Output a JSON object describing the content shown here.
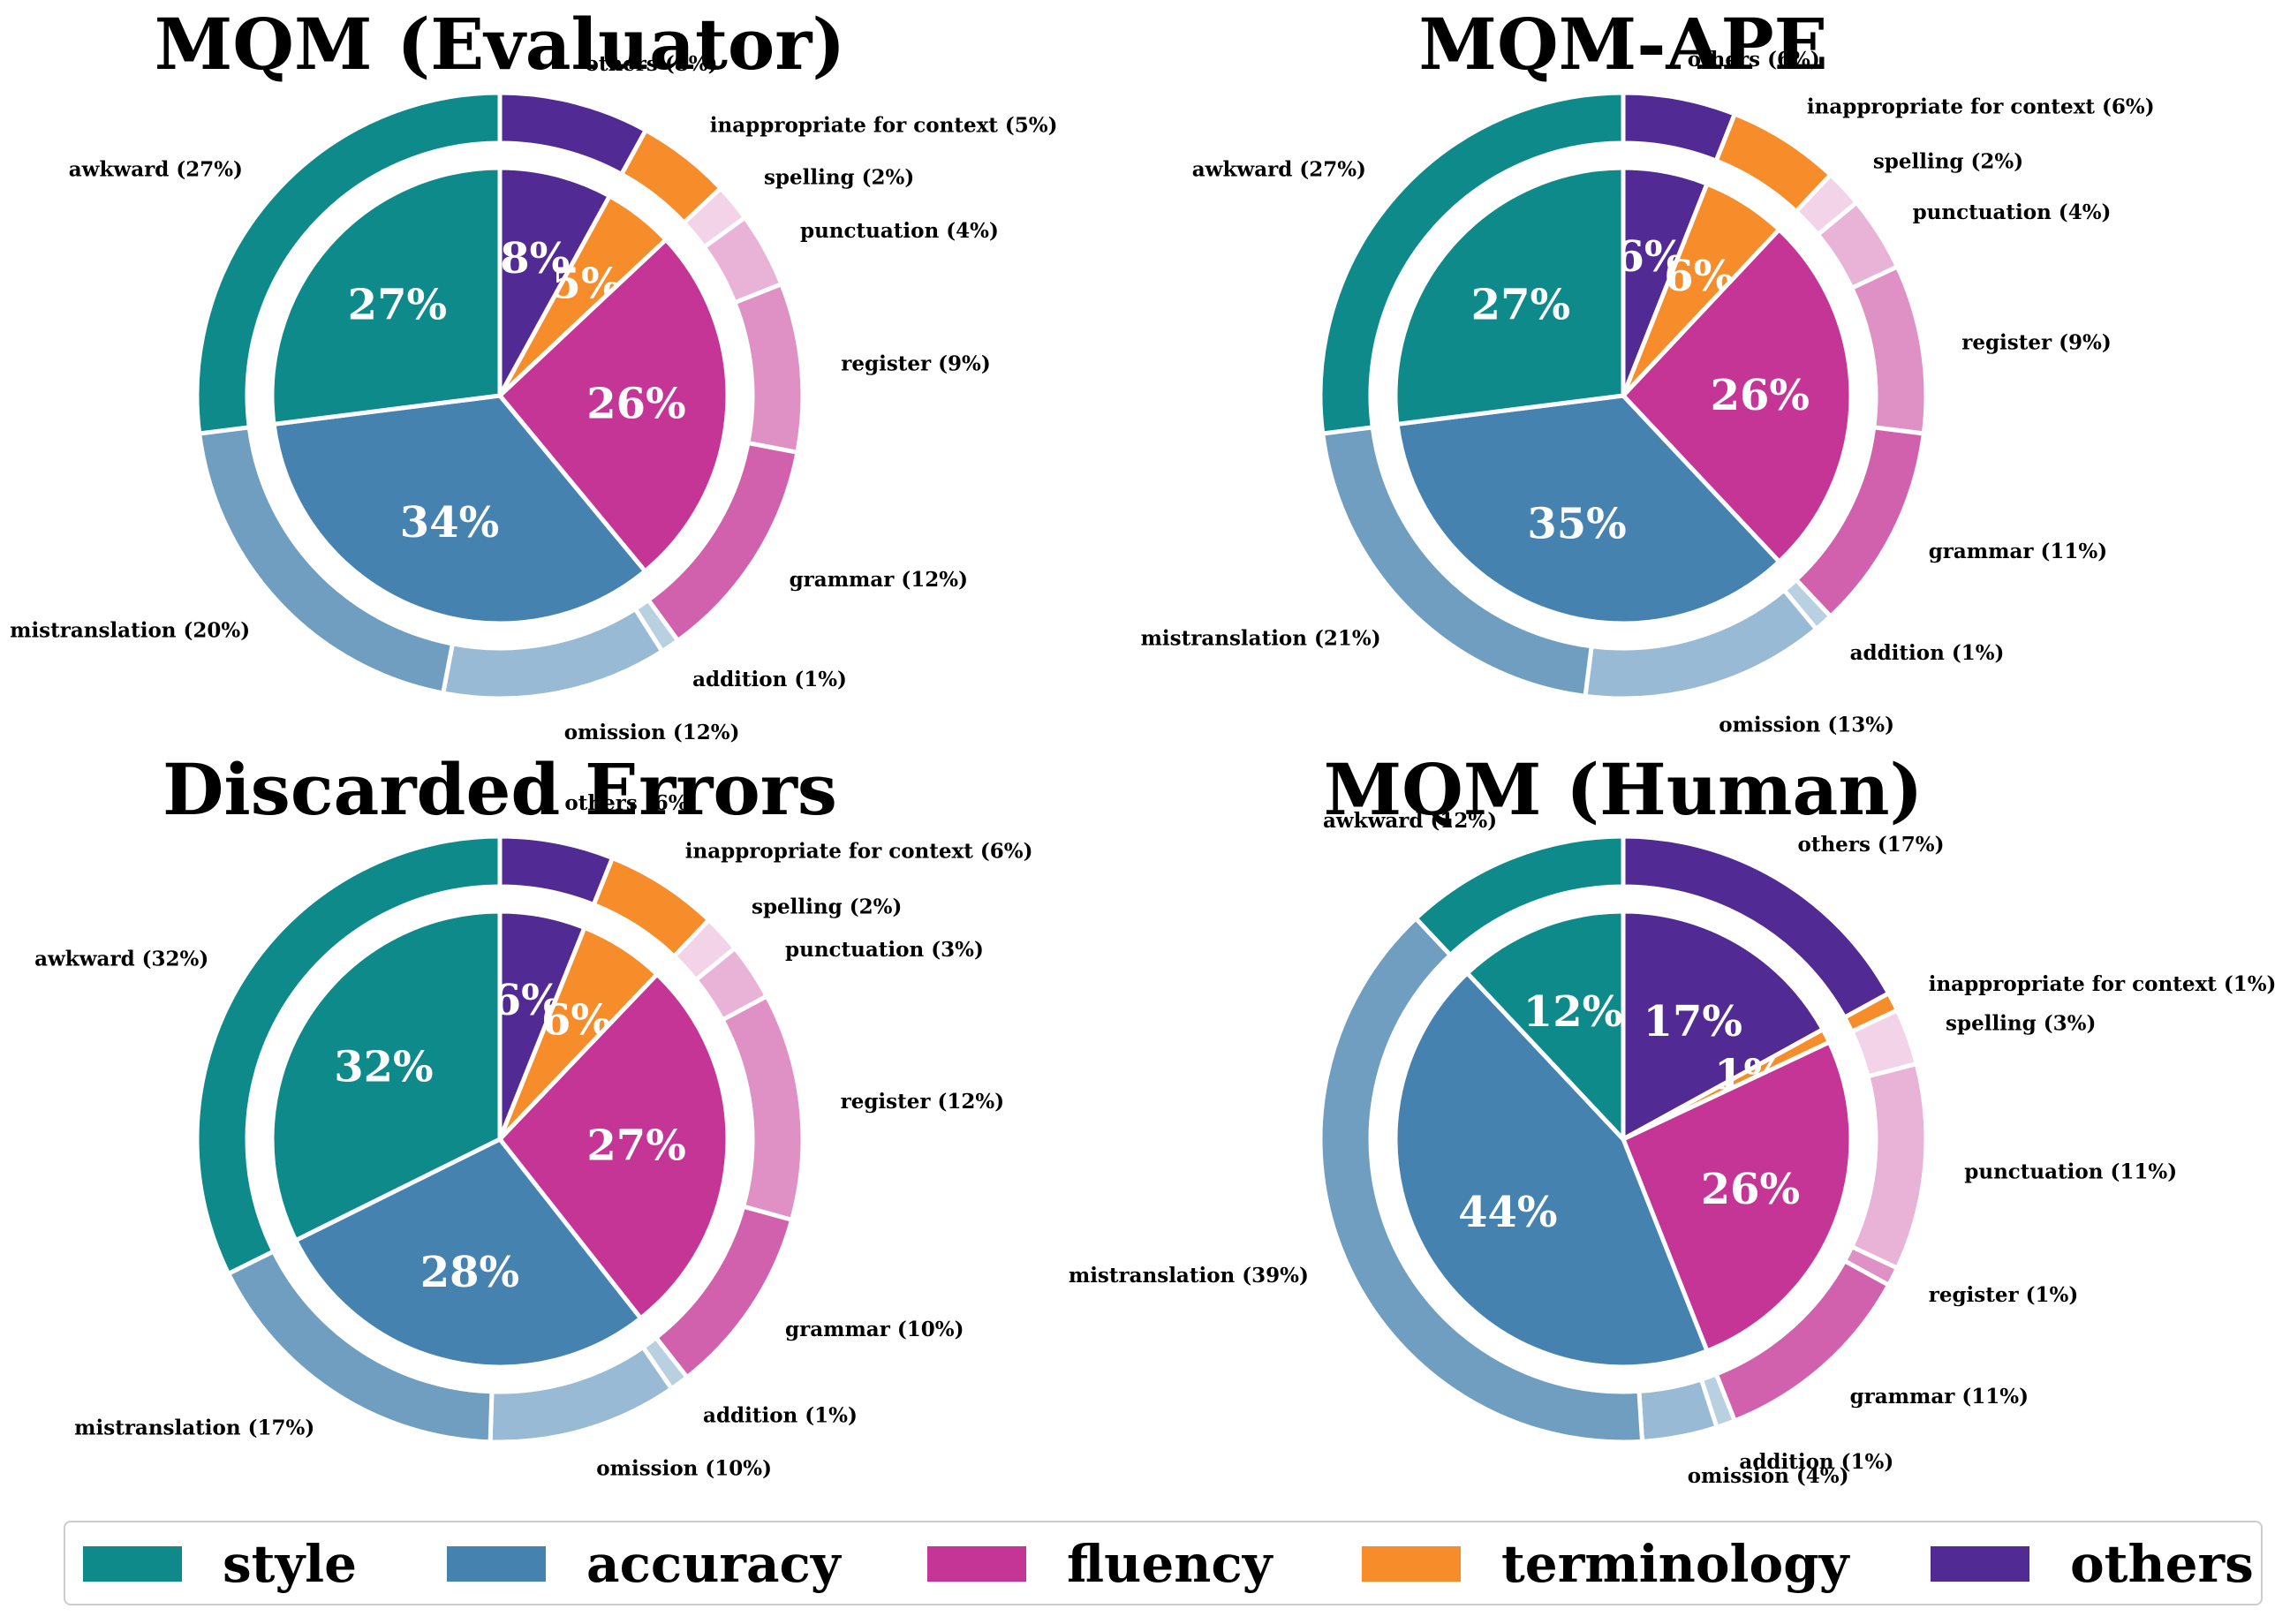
{
  "colors": {
    "style": "#0f8a8a",
    "accuracy": "#4682b0",
    "fluency": "#c53596",
    "terminology": "#f68d2a",
    "others": "#512b93"
  },
  "legend": [
    {
      "key": "style",
      "label": "style"
    },
    {
      "key": "accuracy",
      "label": "accuracy"
    },
    {
      "key": "fluency",
      "label": "fluency"
    },
    {
      "key": "terminology",
      "label": "terminology"
    },
    {
      "key": "others",
      "label": "others"
    }
  ],
  "chart_data": [
    {
      "type": "pie",
      "title": "MQM (Evaluator)",
      "inner": [
        {
          "category": "style",
          "value": 27,
          "label": "27%"
        },
        {
          "category": "accuracy",
          "value": 34,
          "label": "34%"
        },
        {
          "category": "fluency",
          "value": 26,
          "label": "26%"
        },
        {
          "category": "terminology",
          "value": 5,
          "label": "5%"
        },
        {
          "category": "others",
          "value": 8,
          "label": "8%"
        }
      ],
      "outer": [
        {
          "category": "style",
          "name": "awkward",
          "value": 27,
          "label": "awkward (27%)"
        },
        {
          "category": "accuracy",
          "name": "mistranslation",
          "value": 20,
          "label": "mistranslation (20%)"
        },
        {
          "category": "accuracy",
          "name": "omission",
          "value": 12,
          "label": "omission (12%)"
        },
        {
          "category": "accuracy",
          "name": "addition",
          "value": 1,
          "label": "addition (1%)"
        },
        {
          "category": "fluency",
          "name": "grammar",
          "value": 12,
          "label": "grammar (12%)"
        },
        {
          "category": "fluency",
          "name": "register",
          "value": 9,
          "label": "register (9%)"
        },
        {
          "category": "fluency",
          "name": "punctuation",
          "value": 4,
          "label": "punctuation (4%)"
        },
        {
          "category": "fluency",
          "name": "spelling",
          "value": 2,
          "label": "spelling (2%)"
        },
        {
          "category": "terminology",
          "name": "inappropriate for context",
          "value": 5,
          "label": "inappropriate for context (5%)"
        },
        {
          "category": "others",
          "name": "others",
          "value": 8,
          "label": "others (8%)"
        }
      ]
    },
    {
      "type": "pie",
      "title": "MQM-APE",
      "inner": [
        {
          "category": "style",
          "value": 27,
          "label": "27%"
        },
        {
          "category": "accuracy",
          "value": 35,
          "label": "35%"
        },
        {
          "category": "fluency",
          "value": 26,
          "label": "26%"
        },
        {
          "category": "terminology",
          "value": 6,
          "label": "6%"
        },
        {
          "category": "others",
          "value": 6,
          "label": "6%"
        }
      ],
      "outer": [
        {
          "category": "style",
          "name": "awkward",
          "value": 27,
          "label": "awkward (27%)"
        },
        {
          "category": "accuracy",
          "name": "mistranslation",
          "value": 21,
          "label": "mistranslation (21%)"
        },
        {
          "category": "accuracy",
          "name": "omission",
          "value": 13,
          "label": "omission (13%)"
        },
        {
          "category": "accuracy",
          "name": "addition",
          "value": 1,
          "label": "addition (1%)"
        },
        {
          "category": "fluency",
          "name": "grammar",
          "value": 11,
          "label": "grammar (11%)"
        },
        {
          "category": "fluency",
          "name": "register",
          "value": 9,
          "label": "register (9%)"
        },
        {
          "category": "fluency",
          "name": "punctuation",
          "value": 4,
          "label": "punctuation (4%)"
        },
        {
          "category": "fluency",
          "name": "spelling",
          "value": 2,
          "label": "spelling (2%)"
        },
        {
          "category": "terminology",
          "name": "inappropriate for context",
          "value": 6,
          "label": "inappropriate for context (6%)"
        },
        {
          "category": "others",
          "name": "others",
          "value": 6,
          "label": "others (6%)"
        }
      ]
    },
    {
      "type": "pie",
      "title": "Discarded Errors",
      "inner": [
        {
          "category": "style",
          "value": 32,
          "label": "32%"
        },
        {
          "category": "accuracy",
          "value": 28,
          "label": "28%"
        },
        {
          "category": "fluency",
          "value": 27,
          "label": "27%"
        },
        {
          "category": "terminology",
          "value": 6,
          "label": "6%"
        },
        {
          "category": "others",
          "value": 6,
          "label": "6%"
        }
      ],
      "outer": [
        {
          "category": "style",
          "name": "awkward",
          "value": 32,
          "label": "awkward (32%)"
        },
        {
          "category": "accuracy",
          "name": "mistranslation",
          "value": 17,
          "label": "mistranslation (17%)"
        },
        {
          "category": "accuracy",
          "name": "omission",
          "value": 10,
          "label": "omission (10%)"
        },
        {
          "category": "accuracy",
          "name": "addition",
          "value": 1,
          "label": "addition (1%)"
        },
        {
          "category": "fluency",
          "name": "grammar",
          "value": 10,
          "label": "grammar (10%)"
        },
        {
          "category": "fluency",
          "name": "register",
          "value": 12,
          "label": "register (12%)"
        },
        {
          "category": "fluency",
          "name": "punctuation",
          "value": 3,
          "label": "punctuation (3%)"
        },
        {
          "category": "fluency",
          "name": "spelling",
          "value": 2,
          "label": "spelling (2%)"
        },
        {
          "category": "terminology",
          "name": "inappropriate for context",
          "value": 6,
          "label": "inappropriate for context (6%)"
        },
        {
          "category": "others",
          "name": "others",
          "value": 6,
          "label": "others (6%)"
        }
      ]
    },
    {
      "type": "pie",
      "title": "MQM (Human)",
      "inner": [
        {
          "category": "style",
          "value": 12,
          "label": "12%"
        },
        {
          "category": "accuracy",
          "value": 44,
          "label": "44%"
        },
        {
          "category": "fluency",
          "value": 26,
          "label": "26%"
        },
        {
          "category": "terminology",
          "value": 1,
          "label": "1%"
        },
        {
          "category": "others",
          "value": 17,
          "label": "17%"
        }
      ],
      "outer": [
        {
          "category": "style",
          "name": "awkward",
          "value": 12,
          "label": "awkward (12%)"
        },
        {
          "category": "accuracy",
          "name": "mistranslation",
          "value": 39,
          "label": "mistranslation (39%)"
        },
        {
          "category": "accuracy",
          "name": "omission",
          "value": 4,
          "label": "omission (4%)"
        },
        {
          "category": "accuracy",
          "name": "addition",
          "value": 1,
          "label": "addition (1%)"
        },
        {
          "category": "fluency",
          "name": "grammar",
          "value": 11,
          "label": "grammar (11%)"
        },
        {
          "category": "fluency",
          "name": "register",
          "value": 1,
          "label": "register (1%)"
        },
        {
          "category": "fluency",
          "name": "punctuation",
          "value": 11,
          "label": "punctuation (11%)"
        },
        {
          "category": "fluency",
          "name": "spelling",
          "value": 3,
          "label": "spelling (3%)"
        },
        {
          "category": "terminology",
          "name": "inappropriate for context",
          "value": 1,
          "label": "inappropriate for context (1%)"
        },
        {
          "category": "others",
          "name": "others",
          "value": 17,
          "label": "others (17%)"
        }
      ]
    }
  ]
}
